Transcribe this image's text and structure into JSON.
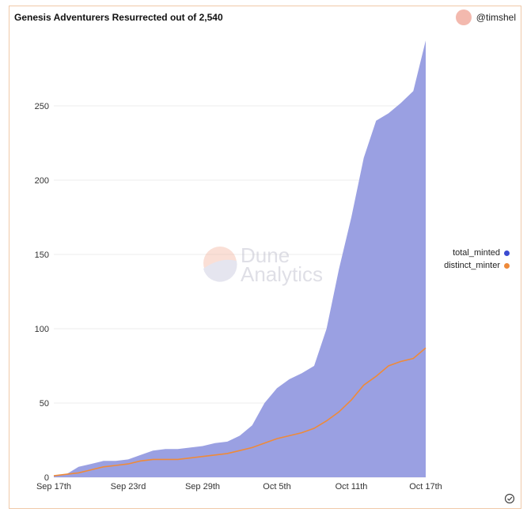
{
  "header": {
    "title": "Genesis Adventurers Resurrected out of 2,540",
    "author": "@timshel"
  },
  "watermark": {
    "line1": "Dune",
    "line2": "Analytics"
  },
  "colors": {
    "total_minted_fill": "#9aa0e2",
    "distinct_minter_line": "#ee8a3a",
    "total_minted_dot": "#3b4bd1",
    "distinct_minter_dot": "#ee8a3a"
  },
  "chart_data": {
    "type": "area",
    "title": "Genesis Adventurers Resurrected out of 2,540",
    "xlabel": "",
    "ylabel": "",
    "ylim": [
      0,
      300
    ],
    "xlim": [
      "2023-09-17",
      "2023-10-17"
    ],
    "y_ticks": [
      0,
      50,
      100,
      150,
      200,
      250
    ],
    "x_ticks": [
      "Sep 17th",
      "Sep 23rd",
      "Sep 29th",
      "Oct 5th",
      "Oct 11th",
      "Oct 17th"
    ],
    "grid": true,
    "legend_position": "right",
    "series": [
      {
        "name": "total_minted",
        "kind": "area",
        "x": [
          "2023-09-17",
          "2023-09-18",
          "2023-09-19",
          "2023-09-20",
          "2023-09-21",
          "2023-09-22",
          "2023-09-23",
          "2023-09-24",
          "2023-09-25",
          "2023-09-26",
          "2023-09-27",
          "2023-09-28",
          "2023-09-29",
          "2023-09-30",
          "2023-10-01",
          "2023-10-02",
          "2023-10-03",
          "2023-10-04",
          "2023-10-05",
          "2023-10-06",
          "2023-10-07",
          "2023-10-08",
          "2023-10-09",
          "2023-10-10",
          "2023-10-11",
          "2023-10-12",
          "2023-10-13",
          "2023-10-14",
          "2023-10-15",
          "2023-10-16",
          "2023-10-17"
        ],
        "values": [
          1,
          2,
          7,
          9,
          11,
          11,
          12,
          15,
          18,
          19,
          19,
          20,
          21,
          23,
          24,
          28,
          35,
          50,
          60,
          66,
          70,
          75,
          100,
          140,
          175,
          215,
          240,
          245,
          252,
          260,
          294
        ]
      },
      {
        "name": "distinct_minter",
        "kind": "line",
        "x": [
          "2023-09-17",
          "2023-09-18",
          "2023-09-19",
          "2023-09-20",
          "2023-09-21",
          "2023-09-22",
          "2023-09-23",
          "2023-09-24",
          "2023-09-25",
          "2023-09-26",
          "2023-09-27",
          "2023-09-28",
          "2023-09-29",
          "2023-09-30",
          "2023-10-01",
          "2023-10-02",
          "2023-10-03",
          "2023-10-04",
          "2023-10-05",
          "2023-10-06",
          "2023-10-07",
          "2023-10-08",
          "2023-10-09",
          "2023-10-10",
          "2023-10-11",
          "2023-10-12",
          "2023-10-13",
          "2023-10-14",
          "2023-10-15",
          "2023-10-16",
          "2023-10-17"
        ],
        "values": [
          1,
          2,
          3,
          5,
          7,
          8,
          9,
          11,
          12,
          12,
          12,
          13,
          14,
          15,
          16,
          18,
          20,
          23,
          26,
          28,
          30,
          33,
          38,
          44,
          52,
          62,
          68,
          75,
          78,
          80,
          87
        ]
      }
    ]
  }
}
